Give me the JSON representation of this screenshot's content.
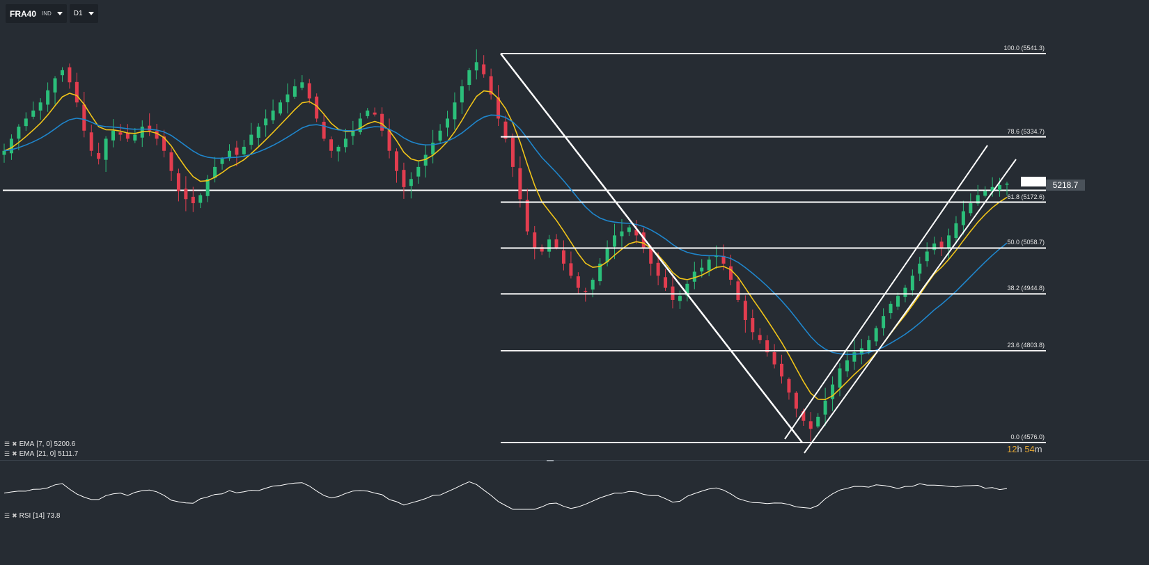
{
  "header": {
    "symbol": "FRA40",
    "symbol_type": "IND",
    "timeframe": "D1"
  },
  "current_price": "5218.7",
  "countdown": {
    "hours": "12",
    "h_unit": "h",
    "minutes": "54",
    "m_unit": "m"
  },
  "indicators": [
    {
      "label": "EMA",
      "params": "[7, 0]",
      "value": "5200.6"
    },
    {
      "label": "EMA",
      "params": "[21, 0]",
      "value": "5111.7"
    }
  ],
  "rsi": {
    "label": "RSI",
    "params": "[14]",
    "value": "73.8"
  },
  "fibonacci": [
    {
      "label": "100.0 (5541.3)",
      "level": 5541.3
    },
    {
      "label": "78.6 (5334.7)",
      "level": 5334.7
    },
    {
      "label": "61.8 (5172.6)",
      "level": 5172.6
    },
    {
      "label": "50.0 (5058.7)",
      "level": 5058.7
    },
    {
      "label": "38.2 (4944.8)",
      "level": 4944.8
    },
    {
      "label": "23.6 (4803.8)",
      "level": 4803.8
    },
    {
      "label": "0.0 (4576.0)",
      "level": 4576.0
    }
  ],
  "colors": {
    "background": "#262c33",
    "bull": "#2bbf7a",
    "bear": "#e23d4f",
    "ema_fast": "#f0c419",
    "ema_slow": "#1f86cc",
    "drawing": "#ffffff",
    "countdown": "#e4a632"
  },
  "chart_data": {
    "type": "candlestick",
    "timeframe": "D1",
    "price_range": [
      4560,
      5580
    ],
    "horizontal_support": 5202,
    "closes_estimate": [
      5300,
      5330,
      5360,
      5380,
      5400,
      5420,
      5450,
      5480,
      5500,
      5470,
      5420,
      5350,
      5300,
      5280,
      5330,
      5350,
      5340,
      5330,
      5340,
      5360,
      5350,
      5330,
      5300,
      5250,
      5200,
      5180,
      5170,
      5190,
      5230,
      5260,
      5280,
      5300,
      5290,
      5310,
      5340,
      5360,
      5380,
      5400,
      5420,
      5440,
      5460,
      5470,
      5430,
      5380,
      5330,
      5300,
      5310,
      5330,
      5350,
      5380,
      5400,
      5390,
      5350,
      5300,
      5250,
      5210,
      5230,
      5260,
      5290,
      5320,
      5350,
      5380,
      5420,
      5460,
      5500,
      5520,
      5490,
      5440,
      5380,
      5330,
      5260,
      5180,
      5100,
      5060,
      5050,
      5080,
      5060,
      5020,
      4990,
      4960,
      4950,
      4980,
      5020,
      5060,
      5090,
      5100,
      5110,
      5090,
      5060,
      5020,
      4990,
      4960,
      4930,
      4940,
      4970,
      5000,
      5010,
      5030,
      5040,
      5020,
      4980,
      4930,
      4880,
      4850,
      4830,
      4800,
      4770,
      4740,
      4700,
      4660,
      4630,
      4610,
      4640,
      4680,
      4720,
      4760,
      4780,
      4800,
      4810,
      4830,
      4860,
      4890,
      4920,
      4940,
      4960,
      4990,
      5020,
      5050,
      5070,
      5060,
      5090,
      5120,
      5150,
      5170,
      5190,
      5200,
      5210,
      5215,
      5218.7
    ],
    "series": [
      {
        "name": "EMA [7, 0]",
        "last": 5200.6
      },
      {
        "name": "EMA [21, 0]",
        "last": 5111.7
      }
    ]
  }
}
